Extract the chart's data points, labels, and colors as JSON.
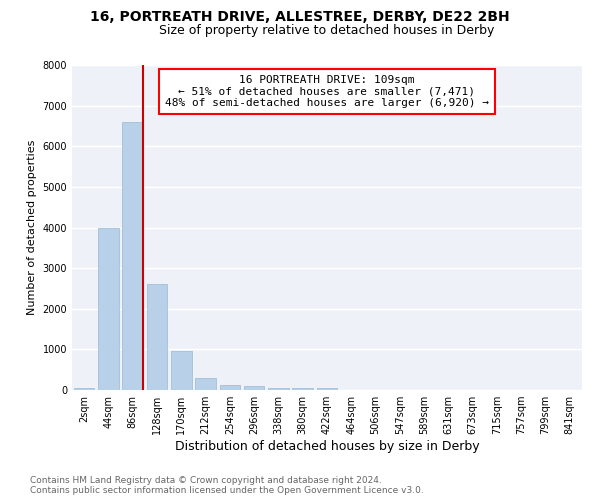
{
  "title1": "16, PORTREATH DRIVE, ALLESTREE, DERBY, DE22 2BH",
  "title2": "Size of property relative to detached houses in Derby",
  "xlabel": "Distribution of detached houses by size in Derby",
  "ylabel": "Number of detached properties",
  "categories": [
    "2sqm",
    "44sqm",
    "86sqm",
    "128sqm",
    "170sqm",
    "212sqm",
    "254sqm",
    "296sqm",
    "338sqm",
    "380sqm",
    "422sqm",
    "464sqm",
    "506sqm",
    "547sqm",
    "589sqm",
    "631sqm",
    "673sqm",
    "715sqm",
    "757sqm",
    "799sqm",
    "841sqm"
  ],
  "values": [
    60,
    4000,
    6600,
    2600,
    960,
    290,
    130,
    100,
    55,
    45,
    50,
    0,
    0,
    0,
    0,
    0,
    0,
    0,
    0,
    0,
    0
  ],
  "bar_color": "#b8d0e8",
  "bar_edgecolor": "#9ab8d8",
  "vline_color": "#cc0000",
  "ylim": [
    0,
    8000
  ],
  "annotation_box_text": "16 PORTREATH DRIVE: 109sqm\n← 51% of detached houses are smaller (7,471)\n48% of semi-detached houses are larger (6,920) →",
  "footnote": "Contains HM Land Registry data © Crown copyright and database right 2024.\nContains public sector information licensed under the Open Government Licence v3.0.",
  "title1_fontsize": 10,
  "title2_fontsize": 9,
  "xlabel_fontsize": 9,
  "ylabel_fontsize": 8,
  "tick_fontsize": 7,
  "annotation_fontsize": 8,
  "footnote_fontsize": 6.5,
  "plot_bg_color": "#eef2f8",
  "grid_color": "#ffffff"
}
